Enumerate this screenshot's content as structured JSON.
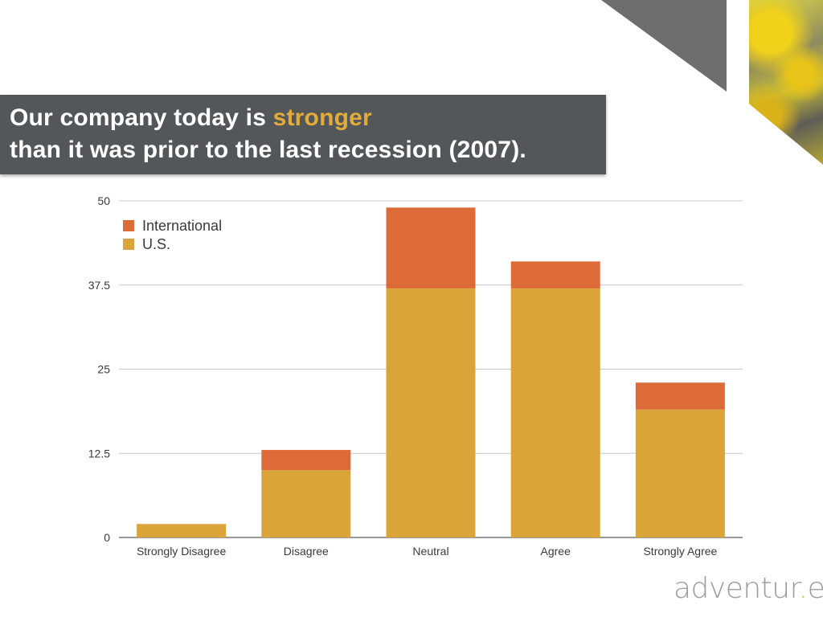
{
  "slide": {
    "title_line1_prefix": "Our company today is ",
    "title_line1_highlight": "stronger",
    "title_line2": "than it was prior to the last recession (2007).",
    "logo_prefix": "adventur",
    "logo_dot": ".",
    "logo_suffix": "es"
  },
  "colors": {
    "international": "#dd6b37",
    "us": "#dba438",
    "title_band": "#54575a",
    "highlight": "#e3ac3a"
  },
  "chart_data": {
    "type": "bar",
    "stacked": true,
    "title": "",
    "xlabel": "",
    "ylabel": "",
    "categories": [
      "Strongly Disagree",
      "Disagree",
      "Neutral",
      "Agree",
      "Strongly Agree"
    ],
    "series": [
      {
        "name": "U.S.",
        "values": [
          2,
          10,
          37,
          37,
          19
        ]
      },
      {
        "name": "International",
        "values": [
          0,
          3,
          12,
          4,
          4
        ]
      }
    ],
    "ylim": [
      0,
      50
    ],
    "yticks": [
      "0",
      "12.5",
      "25",
      "37.5",
      "50"
    ],
    "ytick_values": [
      0,
      12.5,
      25,
      37.5,
      50
    ],
    "grid": true,
    "legend_position": "top-left",
    "legend_order": [
      "International",
      "U.S."
    ]
  }
}
